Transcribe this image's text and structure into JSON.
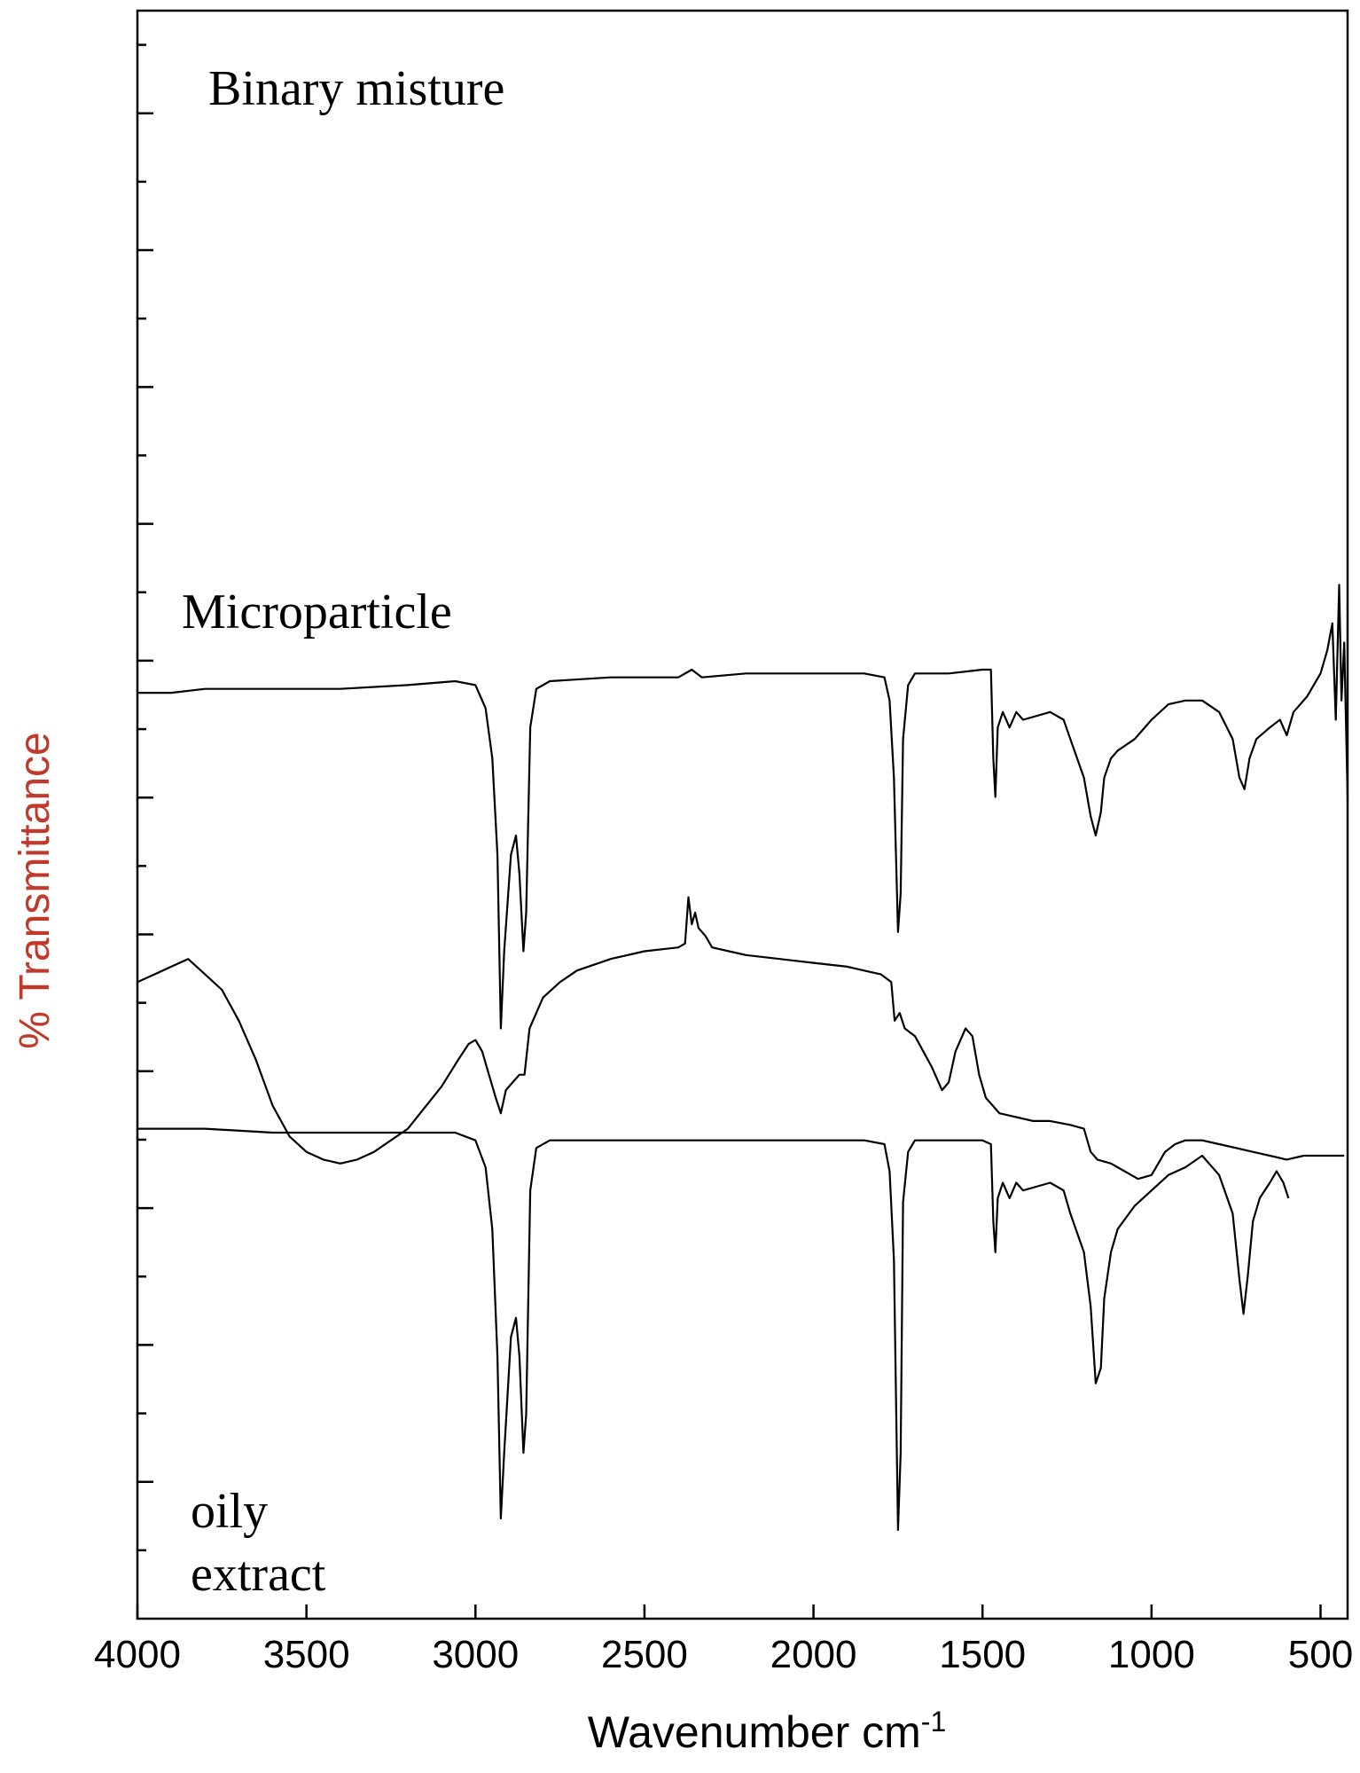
{
  "chart_data": {
    "type": "line",
    "xlabel": "Wavenumber cm",
    "xlabel_sup": "-1",
    "ylabel": "% Transmittance",
    "xlim": [
      4000,
      420
    ],
    "x_reversed": true,
    "x_ticks": [
      4000,
      3500,
      3000,
      2500,
      2000,
      1500,
      1000,
      500
    ],
    "y_tick_count": 24,
    "grid": false,
    "colors": {
      "axis": "#000000",
      "ylabel": "#c0392b",
      "line": "#000000"
    },
    "annotations": [
      "Binary misture",
      "Microparticle",
      "oily",
      "extract"
    ],
    "series": [
      {
        "name": "Binary misture",
        "offset": 120,
        "points": [
          [
            4000,
            97
          ],
          [
            3900,
            97
          ],
          [
            3800,
            98
          ],
          [
            3600,
            98
          ],
          [
            3400,
            98
          ],
          [
            3200,
            99
          ],
          [
            3060,
            100
          ],
          [
            3000,
            99
          ],
          [
            2970,
            93
          ],
          [
            2950,
            80
          ],
          [
            2935,
            55
          ],
          [
            2925,
            10
          ],
          [
            2915,
            30
          ],
          [
            2895,
            55
          ],
          [
            2880,
            60
          ],
          [
            2870,
            50
          ],
          [
            2858,
            30
          ],
          [
            2850,
            40
          ],
          [
            2838,
            88
          ],
          [
            2820,
            98
          ],
          [
            2780,
            100
          ],
          [
            2600,
            101
          ],
          [
            2400,
            101
          ],
          [
            2360,
            103
          ],
          [
            2330,
            101
          ],
          [
            2200,
            102
          ],
          [
            2000,
            102
          ],
          [
            1850,
            102
          ],
          [
            1790,
            101
          ],
          [
            1775,
            95
          ],
          [
            1762,
            75
          ],
          [
            1750,
            35
          ],
          [
            1742,
            45
          ],
          [
            1735,
            85
          ],
          [
            1720,
            99
          ],
          [
            1700,
            102
          ],
          [
            1600,
            102
          ],
          [
            1500,
            103
          ],
          [
            1475,
            103
          ],
          [
            1468,
            80
          ],
          [
            1462,
            70
          ],
          [
            1455,
            88
          ],
          [
            1440,
            92
          ],
          [
            1420,
            88
          ],
          [
            1400,
            92
          ],
          [
            1380,
            90
          ],
          [
            1300,
            92
          ],
          [
            1260,
            90
          ],
          [
            1240,
            85
          ],
          [
            1200,
            75
          ],
          [
            1180,
            65
          ],
          [
            1165,
            60
          ],
          [
            1150,
            66
          ],
          [
            1140,
            75
          ],
          [
            1120,
            80
          ],
          [
            1100,
            82
          ],
          [
            1050,
            85
          ],
          [
            1000,
            90
          ],
          [
            950,
            94
          ],
          [
            900,
            95
          ],
          [
            850,
            95
          ],
          [
            800,
            92
          ],
          [
            760,
            85
          ],
          [
            740,
            75
          ],
          [
            725,
            72
          ],
          [
            710,
            80
          ],
          [
            690,
            85
          ],
          [
            650,
            88
          ],
          [
            620,
            90
          ],
          [
            600,
            86
          ],
          [
            580,
            92
          ],
          [
            540,
            96
          ],
          [
            500,
            102
          ],
          [
            480,
            108
          ],
          [
            465,
            115
          ],
          [
            455,
            90
          ],
          [
            445,
            125
          ],
          [
            438,
            95
          ],
          [
            430,
            110
          ],
          [
            420,
            70
          ]
        ]
      },
      {
        "name": "Microparticle",
        "offset": 60,
        "points": [
          [
            4000,
            82
          ],
          [
            3950,
            84
          ],
          [
            3900,
            86
          ],
          [
            3850,
            88
          ],
          [
            3800,
            84
          ],
          [
            3750,
            80
          ],
          [
            3700,
            72
          ],
          [
            3650,
            62
          ],
          [
            3600,
            50
          ],
          [
            3550,
            42
          ],
          [
            3500,
            38
          ],
          [
            3450,
            36
          ],
          [
            3400,
            35
          ],
          [
            3350,
            36
          ],
          [
            3300,
            38
          ],
          [
            3200,
            44
          ],
          [
            3100,
            55
          ],
          [
            3050,
            62
          ],
          [
            3020,
            66
          ],
          [
            3000,
            67
          ],
          [
            2980,
            64
          ],
          [
            2960,
            58
          ],
          [
            2940,
            52
          ],
          [
            2925,
            48
          ],
          [
            2910,
            54
          ],
          [
            2890,
            56
          ],
          [
            2870,
            58
          ],
          [
            2855,
            58
          ],
          [
            2840,
            70
          ],
          [
            2800,
            78
          ],
          [
            2750,
            82
          ],
          [
            2700,
            85
          ],
          [
            2600,
            88
          ],
          [
            2500,
            90
          ],
          [
            2400,
            91
          ],
          [
            2380,
            92
          ],
          [
            2370,
            104
          ],
          [
            2360,
            97
          ],
          [
            2350,
            100
          ],
          [
            2340,
            96
          ],
          [
            2320,
            94
          ],
          [
            2300,
            91
          ],
          [
            2250,
            90
          ],
          [
            2200,
            89
          ],
          [
            2100,
            88
          ],
          [
            2000,
            87
          ],
          [
            1900,
            86
          ],
          [
            1850,
            85
          ],
          [
            1800,
            84
          ],
          [
            1770,
            82
          ],
          [
            1760,
            72
          ],
          [
            1745,
            74
          ],
          [
            1730,
            70
          ],
          [
            1700,
            68
          ],
          [
            1650,
            60
          ],
          [
            1620,
            54
          ],
          [
            1600,
            56
          ],
          [
            1580,
            64
          ],
          [
            1550,
            70
          ],
          [
            1530,
            68
          ],
          [
            1510,
            58
          ],
          [
            1490,
            52
          ],
          [
            1470,
            50
          ],
          [
            1450,
            48
          ],
          [
            1400,
            47
          ],
          [
            1350,
            46
          ],
          [
            1300,
            46
          ],
          [
            1240,
            45
          ],
          [
            1200,
            44
          ],
          [
            1180,
            38
          ],
          [
            1160,
            36
          ],
          [
            1120,
            35
          ],
          [
            1080,
            33
          ],
          [
            1040,
            31
          ],
          [
            1000,
            32
          ],
          [
            960,
            38
          ],
          [
            930,
            40
          ],
          [
            900,
            41
          ],
          [
            850,
            41
          ],
          [
            800,
            40
          ],
          [
            750,
            39
          ],
          [
            700,
            38
          ],
          [
            650,
            37
          ],
          [
            600,
            36
          ],
          [
            550,
            37
          ],
          [
            500,
            37
          ],
          [
            430,
            37
          ]
        ]
      },
      {
        "name": "oily extract",
        "offset": 0,
        "points": [
          [
            4000,
            104
          ],
          [
            3800,
            104
          ],
          [
            3600,
            103
          ],
          [
            3400,
            103
          ],
          [
            3200,
            103
          ],
          [
            3060,
            103
          ],
          [
            3000,
            101
          ],
          [
            2970,
            94
          ],
          [
            2950,
            78
          ],
          [
            2935,
            45
          ],
          [
            2925,
            3
          ],
          [
            2915,
            20
          ],
          [
            2895,
            50
          ],
          [
            2880,
            55
          ],
          [
            2870,
            45
          ],
          [
            2858,
            20
          ],
          [
            2850,
            30
          ],
          [
            2838,
            88
          ],
          [
            2820,
            99
          ],
          [
            2780,
            101
          ],
          [
            2600,
            101
          ],
          [
            2400,
            101
          ],
          [
            2200,
            101
          ],
          [
            2000,
            101
          ],
          [
            1850,
            101
          ],
          [
            1790,
            100
          ],
          [
            1775,
            93
          ],
          [
            1762,
            70
          ],
          [
            1750,
            0
          ],
          [
            1742,
            20
          ],
          [
            1735,
            85
          ],
          [
            1720,
            98
          ],
          [
            1700,
            101
          ],
          [
            1600,
            101
          ],
          [
            1500,
            101
          ],
          [
            1475,
            100
          ],
          [
            1468,
            80
          ],
          [
            1462,
            72
          ],
          [
            1455,
            86
          ],
          [
            1440,
            90
          ],
          [
            1420,
            86
          ],
          [
            1400,
            90
          ],
          [
            1380,
            88
          ],
          [
            1300,
            90
          ],
          [
            1260,
            88
          ],
          [
            1240,
            82
          ],
          [
            1200,
            72
          ],
          [
            1180,
            58
          ],
          [
            1165,
            38
          ],
          [
            1150,
            42
          ],
          [
            1140,
            60
          ],
          [
            1120,
            72
          ],
          [
            1100,
            78
          ],
          [
            1050,
            84
          ],
          [
            1000,
            88
          ],
          [
            950,
            92
          ],
          [
            900,
            94
          ],
          [
            850,
            97
          ],
          [
            800,
            92
          ],
          [
            760,
            82
          ],
          [
            740,
            65
          ],
          [
            728,
            56
          ],
          [
            715,
            66
          ],
          [
            700,
            80
          ],
          [
            680,
            86
          ],
          [
            650,
            90
          ],
          [
            630,
            93
          ],
          [
            610,
            90
          ],
          [
            595,
            86
          ]
        ]
      }
    ]
  }
}
